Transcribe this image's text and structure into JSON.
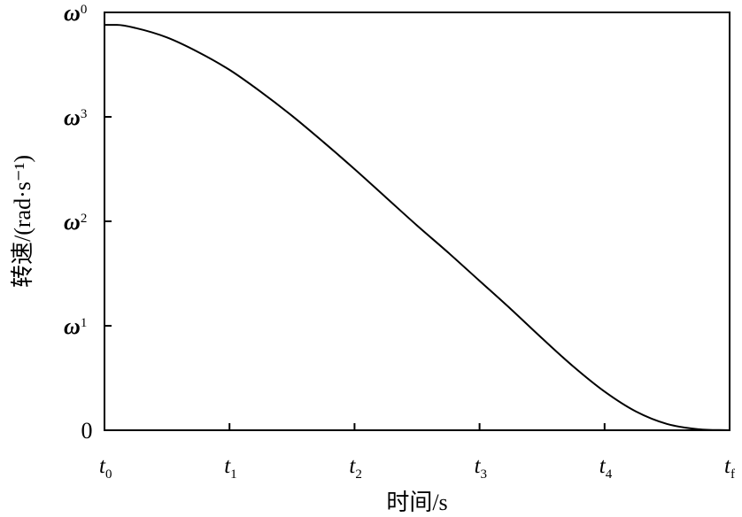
{
  "chart_data": {
    "type": "line",
    "xlabel": "时间/s",
    "ylabel": "转速/(rad·s⁻¹)",
    "x_ticks": [
      {
        "base": "t",
        "sub": "0"
      },
      {
        "base": "t",
        "sub": "1"
      },
      {
        "base": "t",
        "sub": "2"
      },
      {
        "base": "t",
        "sub": "3"
      },
      {
        "base": "t",
        "sub": "4"
      },
      {
        "base": "t",
        "sub": "f"
      }
    ],
    "y_ticks": [
      {
        "text": "0",
        "value": 0
      },
      {
        "base": "ω",
        "sub": "1",
        "value": 1
      },
      {
        "base": "ω",
        "sub": "2",
        "value": 2
      },
      {
        "base": "ω",
        "sub": "3",
        "value": 3
      },
      {
        "base": "ω",
        "sub": "0",
        "value": 4
      }
    ],
    "xlim": [
      0,
      5
    ],
    "ylim": [
      0,
      4
    ],
    "series": [
      {
        "x": [
          0,
          0.1,
          0.25,
          0.5,
          0.75,
          1.0,
          1.25,
          1.5,
          1.75,
          2.0,
          2.25,
          2.5,
          2.75,
          3.0,
          3.25,
          3.5,
          3.75,
          4.0,
          4.25,
          4.5,
          4.75,
          5.0
        ],
        "y": [
          3.88,
          3.88,
          3.85,
          3.76,
          3.62,
          3.45,
          3.24,
          3.01,
          2.76,
          2.5,
          2.23,
          1.96,
          1.7,
          1.43,
          1.16,
          0.88,
          0.61,
          0.37,
          0.18,
          0.06,
          0.01,
          0.0
        ]
      }
    ]
  }
}
